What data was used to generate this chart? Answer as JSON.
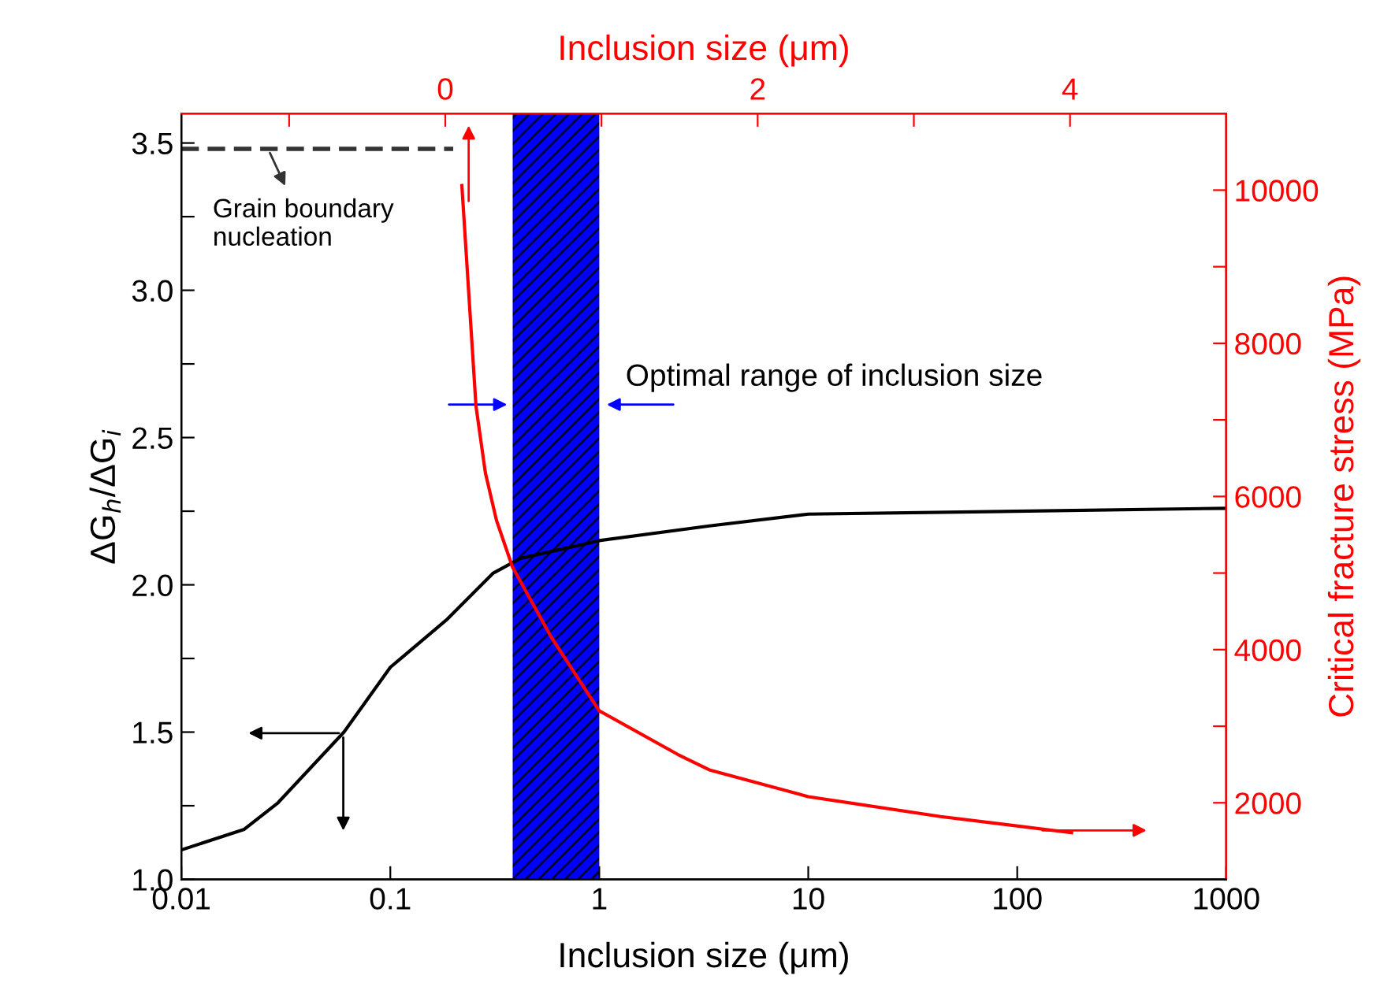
{
  "chart_data": {
    "type": "line",
    "xlabel": "Inclusion size (μm)",
    "ylabel": "ΔG$_{h}$/ΔG$_{i}$",
    "y2label": "Critical fracture stress (MPa)",
    "x2label": "Inclusion size (μm)",
    "log": "x",
    "xlim": [
      0.01,
      1000
    ],
    "xticks": [
      0.01,
      0.1,
      1,
      10,
      100,
      1000
    ],
    "ylim": [
      1.0,
      3.6
    ],
    "yticks": [
      {
        "value": 1.0,
        "label": "1.0"
      },
      {
        "value": 1.25,
        "label": null
      },
      {
        "value": 1.5,
        "label": "1.5"
      },
      {
        "value": 1.75,
        "label": null
      },
      {
        "value": 2.0,
        "label": "2.0"
      },
      {
        "value": 2.25,
        "label": null
      },
      {
        "value": 2.5,
        "label": "2.5"
      },
      {
        "value": 2.75,
        "label": null
      },
      {
        "value": 3.0,
        "label": "3.0"
      },
      {
        "value": 3.25,
        "label": null
      },
      {
        "value": 3.5,
        "label": "3.5"
      }
    ],
    "y2lim": [
      1000,
      11000
    ],
    "y2ticks": [
      {
        "value": 1000,
        "label": null
      },
      2000,
      {
        "value": 3000,
        "label": null
      },
      4000,
      {
        "value": 5000,
        "label": null
      },
      6000,
      {
        "value": 7000,
        "label": null
      },
      8000,
      {
        "value": 9000,
        "label": null
      },
      10000
    ],
    "x2lim": [
      -1.69,
      5.0
    ],
    "x2ticks": [
      {
        "value": -1,
        "label": null
      },
      0,
      {
        "value": 1,
        "label": null
      },
      2,
      {
        "value": 3,
        "label": null
      },
      4
    ],
    "series": [
      {
        "color": "#000000",
        "x": [
          0.01,
          0.02,
          0.029,
          0.06,
          0.1,
          0.185,
          0.311,
          0.42,
          1.0,
          3.36,
          10,
          1000
        ],
        "values": [
          1.1,
          1.17,
          1.26,
          1.5,
          1.72,
          1.88,
          2.04,
          2.09,
          2.15,
          2.2,
          2.24,
          2.26
        ]
      },
      {
        "color": "#ff0000",
        "axis": "y2",
        "x": [
          0.22,
          0.257,
          0.285,
          0.322,
          0.384,
          0.59,
          1.0,
          2.38,
          3.36,
          10,
          43,
          182
        ],
        "values": [
          10060,
          7180,
          6310,
          5690,
          5080,
          4160,
          3200,
          2630,
          2430,
          2080,
          1820,
          1610
        ]
      },
      {
        "color": "#333333",
        "line_style": "dashed",
        "x": [
          0.01,
          0.2
        ],
        "values": [
          3.48,
          3.48
        ]
      }
    ],
    "bands": [
      {
        "axis": "x",
        "from": 0.385,
        "to": 1.0,
        "label": "Optimal range of inclusion size",
        "color": "#0000ff"
      }
    ],
    "annotations": [
      {
        "text": "Grain boundary\nnucleation",
        "x": 0.026,
        "y": 3.48
      }
    ]
  }
}
